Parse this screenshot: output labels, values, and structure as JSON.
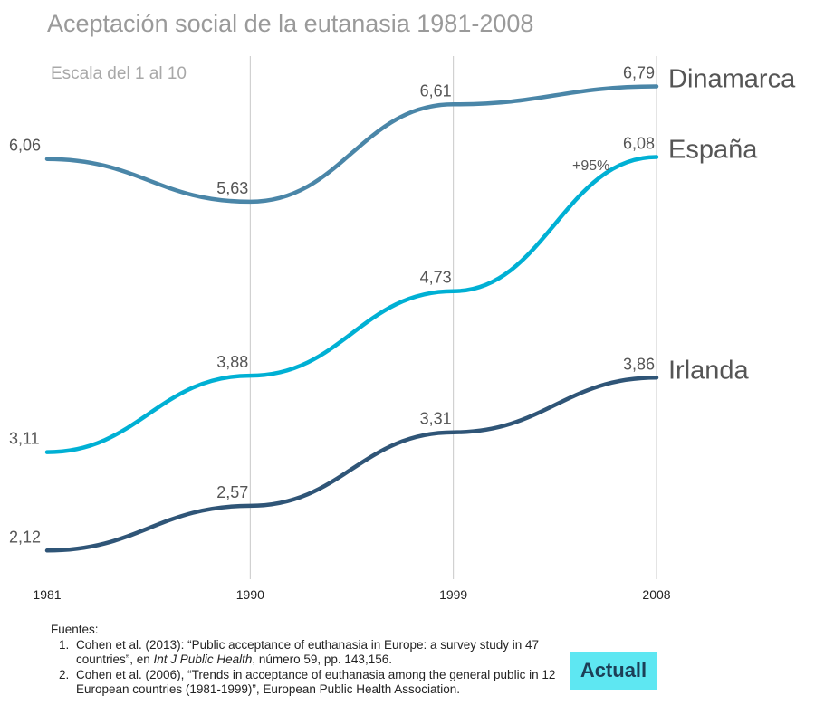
{
  "chart_data": {
    "type": "line",
    "title": "Aceptación social de la eutanasia 1981-2008",
    "subtitle": "Escala del 1 al 10",
    "categories": [
      "1981",
      "1990",
      "1999",
      "2008"
    ],
    "x": [
      1981,
      1990,
      1999,
      2008
    ],
    "ylim": [
      1.9,
      7.2
    ],
    "grid": "vertical",
    "series": [
      {
        "name": "Dinamarca",
        "values": [
          6.06,
          5.63,
          6.61,
          6.79
        ],
        "labels": [
          "6,06",
          "5,63",
          "6,61",
          "6,79"
        ],
        "color": "#4a86a8"
      },
      {
        "name": "España",
        "values": [
          3.11,
          3.88,
          4.73,
          6.08
        ],
        "labels": [
          "3,11",
          "3,88",
          "4,73",
          "6,08"
        ],
        "color": "#00b0d4"
      },
      {
        "name": "Irlanda",
        "values": [
          2.12,
          2.57,
          3.31,
          3.86
        ],
        "labels": [
          "2,12",
          "2,57",
          "3,31",
          "3,86"
        ],
        "color": "#2f5577"
      }
    ],
    "annotation": "+95%"
  },
  "sources": {
    "heading": "Fuentes:",
    "items": [
      {
        "before": "Cohen et al. (2013): “Public acceptance of euthanasia in Europe: a survey study in 47 countries”, en ",
        "italic": "Int J Public Health",
        "after": ", número 59, pp. 143,156."
      },
      {
        "before": "Cohen et al. (2006), “Trends in acceptance of euthanasia among the general public in 12 European countries (1981-1999)”, European Public Health Association.",
        "italic": "",
        "after": ""
      }
    ]
  },
  "logo": "Actuall"
}
